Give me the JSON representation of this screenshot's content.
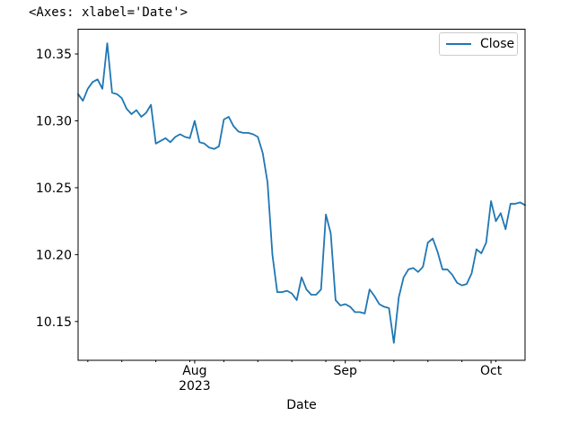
{
  "figure": {
    "repr_text": "<Axes: xlabel='Date'>",
    "background": "#ffffff"
  },
  "chart_data": {
    "type": "line",
    "title": "",
    "xlabel": "Date",
    "ylabel": "",
    "grid": false,
    "legend": {
      "label": "Close",
      "position": "upper right"
    },
    "line_color": "#1f77b4",
    "axis_color": "#000000",
    "xlim": [
      "2023-07-08",
      "2023-10-08"
    ],
    "ylim": [
      10.121,
      10.3685
    ],
    "y_ticks": [
      {
        "value": 10.15,
        "label": "10.15"
      },
      {
        "value": 10.2,
        "label": "10.20"
      },
      {
        "value": 10.25,
        "label": "10.25"
      },
      {
        "value": 10.3,
        "label": "10.30"
      },
      {
        "value": 10.35,
        "label": "10.35"
      }
    ],
    "x_major_ticks": [
      {
        "date": "2023-08-01",
        "label": "Aug",
        "sublabel": "2023"
      },
      {
        "date": "2023-09-01",
        "label": "Sep",
        "sublabel": ""
      },
      {
        "date": "2023-10-01",
        "label": "Oct",
        "sublabel": ""
      }
    ],
    "x_minor_ticks": [
      "2023-07-10",
      "2023-07-17",
      "2023-07-24",
      "2023-07-31",
      "2023-08-07",
      "2023-08-14",
      "2023-08-21",
      "2023-08-28",
      "2023-09-04",
      "2023-09-11",
      "2023-09-18",
      "2023-09-25",
      "2023-10-02"
    ],
    "series": [
      {
        "name": "Close",
        "dates": [
          "2023-07-08",
          "2023-07-09",
          "2023-07-10",
          "2023-07-11",
          "2023-07-12",
          "2023-07-13",
          "2023-07-14",
          "2023-07-15",
          "2023-07-16",
          "2023-07-17",
          "2023-07-18",
          "2023-07-19",
          "2023-07-20",
          "2023-07-21",
          "2023-07-22",
          "2023-07-23",
          "2023-07-24",
          "2023-07-25",
          "2023-07-26",
          "2023-07-27",
          "2023-07-28",
          "2023-07-29",
          "2023-07-30",
          "2023-07-31",
          "2023-08-01",
          "2023-08-02",
          "2023-08-03",
          "2023-08-04",
          "2023-08-05",
          "2023-08-06",
          "2023-08-07",
          "2023-08-08",
          "2023-08-09",
          "2023-08-10",
          "2023-08-11",
          "2023-08-12",
          "2023-08-13",
          "2023-08-14",
          "2023-08-15",
          "2023-08-16",
          "2023-08-17",
          "2023-08-18",
          "2023-08-19",
          "2023-08-20",
          "2023-08-21",
          "2023-08-22",
          "2023-08-23",
          "2023-08-24",
          "2023-08-25",
          "2023-08-26",
          "2023-08-27",
          "2023-08-28",
          "2023-08-29",
          "2023-08-30",
          "2023-08-31",
          "2023-09-01",
          "2023-09-02",
          "2023-09-03",
          "2023-09-04",
          "2023-09-05",
          "2023-09-06",
          "2023-09-07",
          "2023-09-08",
          "2023-09-09",
          "2023-09-10",
          "2023-09-11",
          "2023-09-12",
          "2023-09-13",
          "2023-09-14",
          "2023-09-15",
          "2023-09-16",
          "2023-09-17",
          "2023-09-18",
          "2023-09-19",
          "2023-09-20",
          "2023-09-21",
          "2023-09-22",
          "2023-09-23",
          "2023-09-24",
          "2023-09-25",
          "2023-09-26",
          "2023-09-27",
          "2023-09-28",
          "2023-09-29",
          "2023-09-30",
          "2023-10-01",
          "2023-10-02",
          "2023-10-03",
          "2023-10-04",
          "2023-10-05",
          "2023-10-06",
          "2023-10-07",
          "2023-10-08"
        ],
        "values": [
          10.32,
          10.315,
          10.324,
          10.329,
          10.331,
          10.324,
          10.358,
          10.321,
          10.32,
          10.317,
          10.309,
          10.305,
          10.308,
          10.303,
          10.306,
          10.312,
          10.283,
          10.285,
          10.287,
          10.284,
          10.288,
          10.29,
          10.288,
          10.287,
          10.3,
          10.284,
          10.283,
          10.28,
          10.279,
          10.281,
          10.301,
          10.303,
          10.296,
          10.292,
          10.291,
          10.291,
          10.29,
          10.288,
          10.276,
          10.254,
          10.2,
          10.172,
          10.172,
          10.173,
          10.171,
          10.166,
          10.183,
          10.174,
          10.17,
          10.17,
          10.174,
          10.23,
          10.216,
          10.166,
          10.162,
          10.163,
          10.161,
          10.157,
          10.157,
          10.156,
          10.174,
          10.169,
          10.163,
          10.161,
          10.16,
          10.134,
          10.168,
          10.183,
          10.189,
          10.19,
          10.187,
          10.191,
          10.209,
          10.212,
          10.202,
          10.189,
          10.189,
          10.185,
          10.179,
          10.177,
          10.178,
          10.186,
          10.204,
          10.201,
          10.209,
          10.24,
          10.225,
          10.231,
          10.219,
          10.238,
          10.238,
          10.239,
          10.237
        ]
      }
    ]
  }
}
